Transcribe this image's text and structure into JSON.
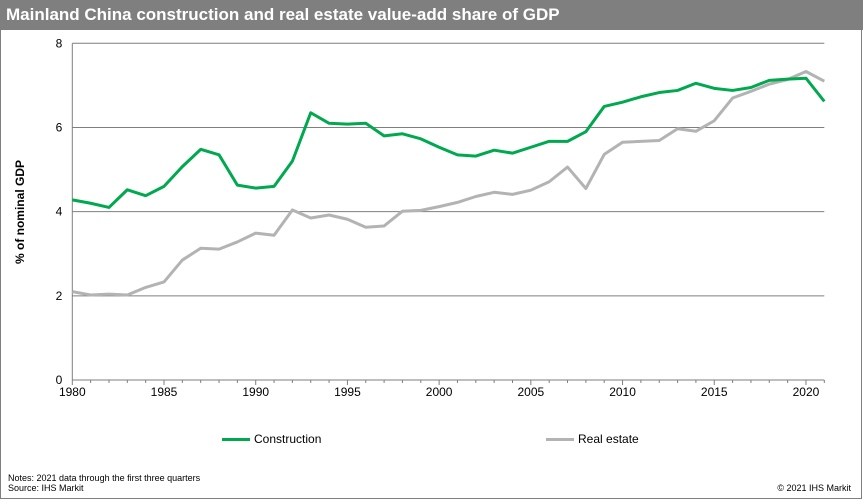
{
  "title": "Mainland China construction and real estate value-add share of GDP",
  "notes": "Notes: 2021 data through the first three quarters",
  "source": "Source: IHS Markit",
  "copyright": "© 2021  IHS Markit",
  "chart_data": {
    "type": "line",
    "title": "Mainland China construction and real estate value-add share of GDP",
    "xlabel": "",
    "ylabel": "% of nominal GDP",
    "xlim": [
      1980,
      2021
    ],
    "ylim": [
      0,
      8
    ],
    "yticks": [
      0,
      2,
      4,
      6,
      8
    ],
    "xticks": [
      1980,
      1985,
      1990,
      1995,
      2000,
      2005,
      2010,
      2015,
      2020
    ],
    "grid": true,
    "legend": "bottom",
    "x": [
      1980,
      1981,
      1982,
      1983,
      1984,
      1985,
      1986,
      1987,
      1988,
      1989,
      1990,
      1991,
      1992,
      1993,
      1994,
      1995,
      1996,
      1997,
      1998,
      1999,
      2000,
      2001,
      2002,
      2003,
      2004,
      2005,
      2006,
      2007,
      2008,
      2009,
      2010,
      2011,
      2012,
      2013,
      2014,
      2015,
      2016,
      2017,
      2018,
      2019,
      2020,
      2021
    ],
    "series": [
      {
        "name": "Construction",
        "color": "#00a84f",
        "values": [
          4.28,
          4.2,
          4.1,
          4.52,
          4.38,
          4.6,
          5.07,
          5.48,
          5.35,
          4.63,
          4.56,
          4.6,
          5.2,
          6.35,
          6.1,
          6.08,
          6.1,
          5.8,
          5.85,
          5.73,
          5.53,
          5.35,
          5.32,
          5.46,
          5.39,
          5.53,
          5.67,
          5.67,
          5.9,
          6.5,
          6.6,
          6.73,
          6.83,
          6.88,
          7.05,
          6.93,
          6.88,
          6.95,
          7.12,
          7.15,
          7.17,
          6.62
        ]
      },
      {
        "name": "Real estate",
        "color": "#b3b3b3",
        "values": [
          2.1,
          2.02,
          2.04,
          2.02,
          2.2,
          2.33,
          2.85,
          3.13,
          3.11,
          3.28,
          3.49,
          3.44,
          4.04,
          3.85,
          3.92,
          3.82,
          3.63,
          3.66,
          4.01,
          4.03,
          4.12,
          4.22,
          4.36,
          4.46,
          4.41,
          4.51,
          4.71,
          5.06,
          4.55,
          5.36,
          5.65,
          5.67,
          5.69,
          5.97,
          5.91,
          6.16,
          6.7,
          6.86,
          7.03,
          7.14,
          7.33,
          7.1
        ]
      }
    ]
  }
}
